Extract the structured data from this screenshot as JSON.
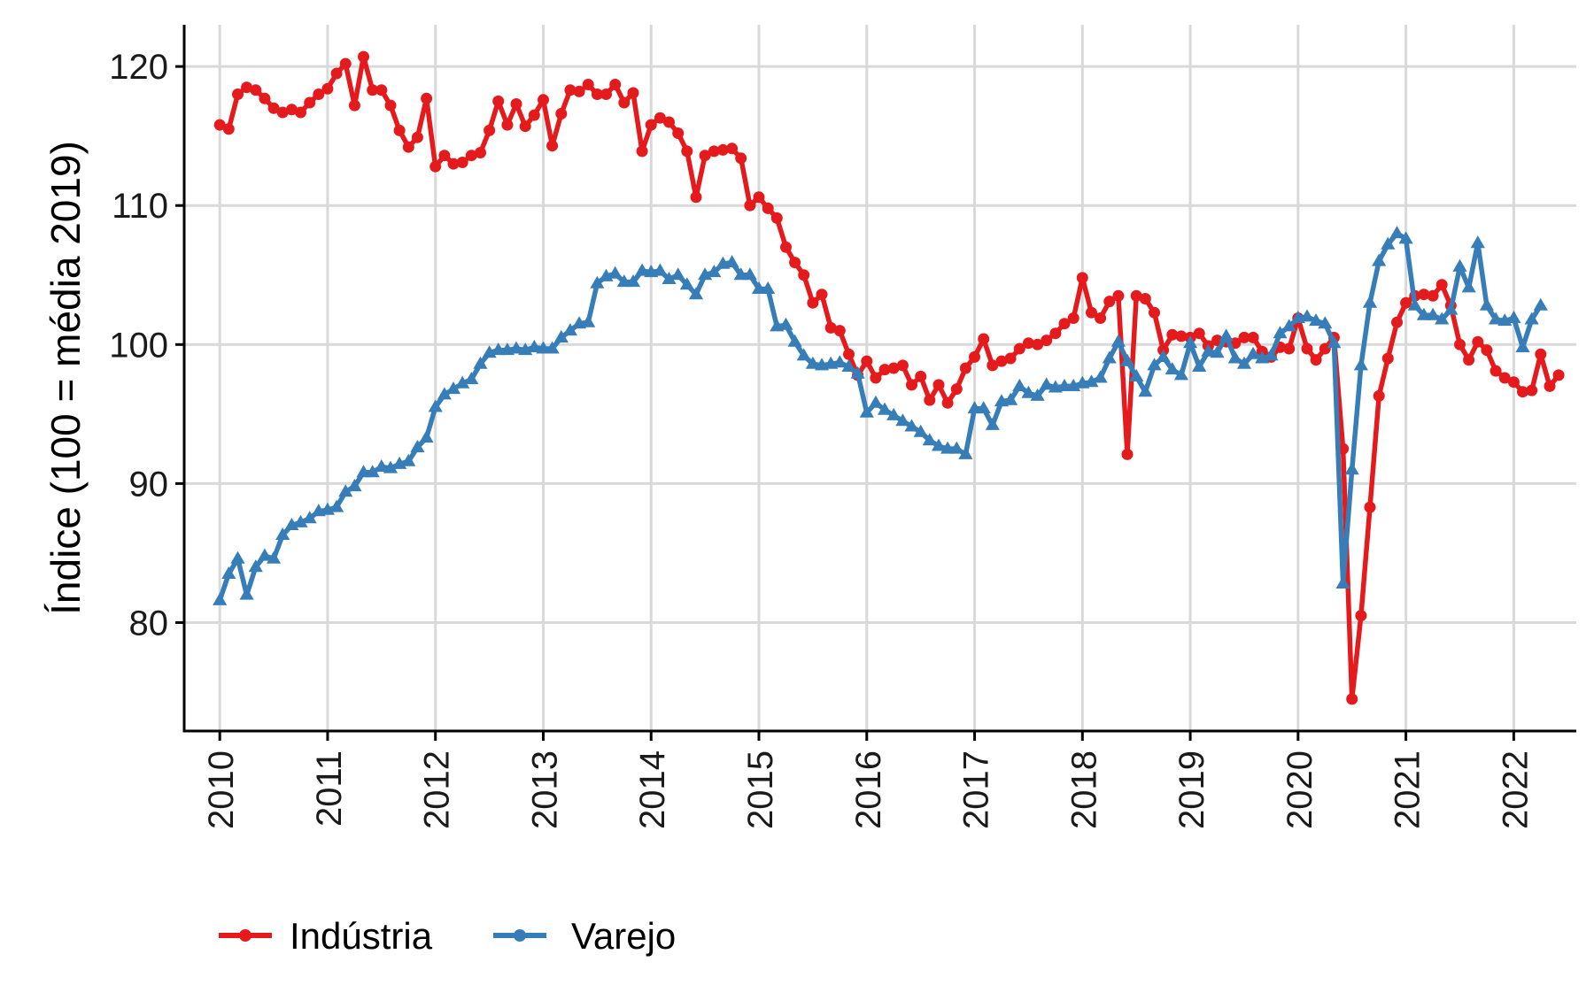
{
  "chart_data": {
    "type": "line",
    "title": "",
    "xlabel": "",
    "ylabel": "Índice (100 = média 2019)",
    "xlim": [
      2009.67,
      2022.58
    ],
    "ylim": [
      72.2,
      123.0
    ],
    "y_ticks": [
      80,
      90,
      100,
      110,
      120
    ],
    "x_ticks": [
      2010,
      2011,
      2012,
      2013,
      2014,
      2015,
      2016,
      2017,
      2018,
      2019,
      2020,
      2021,
      2022
    ],
    "x_tick_labels": [
      "2010",
      "2011",
      "2012",
      "2013",
      "2014",
      "2015",
      "2016",
      "2017",
      "2018",
      "2019",
      "2020",
      "2021",
      "2022"
    ],
    "grid": true,
    "legend_position": "bottom-left",
    "x_start": "2010-01",
    "series": [
      {
        "name": "Indústria",
        "color": "#E41A1C",
        "marker": "circle",
        "values": [
          115.8,
          115.5,
          118.0,
          118.5,
          118.3,
          117.7,
          117.0,
          116.7,
          116.9,
          116.7,
          117.4,
          118.0,
          118.4,
          119.5,
          120.2,
          117.2,
          120.7,
          118.3,
          118.3,
          117.2,
          115.4,
          114.2,
          114.9,
          117.7,
          112.8,
          113.6,
          113.0,
          113.1,
          113.6,
          113.8,
          115.4,
          117.5,
          115.8,
          117.3,
          115.7,
          116.5,
          117.6,
          114.3,
          116.6,
          118.3,
          118.2,
          118.7,
          118.0,
          118.0,
          118.7,
          117.4,
          118.1,
          113.9,
          115.8,
          116.3,
          116.0,
          115.2,
          113.9,
          110.6,
          113.6,
          113.9,
          114.0,
          114.1,
          113.4,
          110.0,
          110.6,
          109.8,
          109.1,
          107.0,
          105.9,
          105.0,
          103.0,
          103.6,
          101.2,
          101.0,
          99.3,
          97.8,
          98.8,
          97.6,
          98.2,
          98.3,
          98.5,
          97.1,
          97.7,
          96.0,
          97.1,
          95.8,
          96.8,
          98.3,
          99.1,
          100.4,
          98.5,
          98.8,
          99.0,
          99.7,
          100.1,
          100.0,
          100.3,
          100.8,
          101.5,
          101.9,
          104.8,
          102.3,
          101.9,
          103.1,
          103.5,
          92.1,
          103.5,
          103.3,
          102.3,
          99.6,
          100.7,
          100.6,
          100.5,
          100.8,
          99.9,
          100.3,
          100.2,
          100.1,
          100.5,
          100.5,
          99.5,
          99.1,
          99.8,
          99.7,
          101.9,
          99.7,
          98.9,
          99.7,
          100.5,
          92.5,
          74.5,
          80.5,
          88.3,
          96.3,
          99.0,
          101.6,
          103.0,
          103.5,
          103.6,
          103.5,
          104.3,
          102.8,
          100.0,
          98.9,
          100.2,
          99.6,
          98.1,
          97.6,
          97.3,
          96.6,
          96.7,
          99.3,
          97.0,
          97.8
        ]
      },
      {
        "name": "Varejo",
        "color": "#377EB8",
        "marker": "triangle",
        "values": [
          81.6,
          83.5,
          84.6,
          82.0,
          84.0,
          84.8,
          84.6,
          86.3,
          87.0,
          87.2,
          87.5,
          88.0,
          88.1,
          88.3,
          89.4,
          89.8,
          90.8,
          90.8,
          91.2,
          91.1,
          91.4,
          91.6,
          92.6,
          93.3,
          95.5,
          96.4,
          96.8,
          97.2,
          97.5,
          98.6,
          99.4,
          99.6,
          99.6,
          99.7,
          99.6,
          99.8,
          99.7,
          99.7,
          100.5,
          101.0,
          101.5,
          101.6,
          104.4,
          104.9,
          105.1,
          104.5,
          104.5,
          105.3,
          105.2,
          105.3,
          104.7,
          105.0,
          104.3,
          103.6,
          105.0,
          105.2,
          105.8,
          105.9,
          105.0,
          105.0,
          104.0,
          104.0,
          101.3,
          101.4,
          100.2,
          99.2,
          98.6,
          98.5,
          98.6,
          98.7,
          98.4,
          97.9,
          95.1,
          95.8,
          95.3,
          94.9,
          94.5,
          94.1,
          93.7,
          93.1,
          92.7,
          92.5,
          92.5,
          92.1,
          95.4,
          95.4,
          94.2,
          95.9,
          96.0,
          97.0,
          96.5,
          96.3,
          97.1,
          96.9,
          97.0,
          97.0,
          97.2,
          97.3,
          97.6,
          99.0,
          100.2,
          98.8,
          97.7,
          96.6,
          98.5,
          99.1,
          98.2,
          97.8,
          100.1,
          98.4,
          99.5,
          99.4,
          100.6,
          99.0,
          98.6,
          99.3,
          99.0,
          99.2,
          100.8,
          101.3,
          101.9,
          102.0,
          101.7,
          101.5,
          100.1,
          82.8,
          91.0,
          98.5,
          103.0,
          106.0,
          107.2,
          108.0,
          107.6,
          102.8,
          102.1,
          102.1,
          101.8,
          102.5,
          105.6,
          104.1,
          107.3,
          102.8,
          101.8,
          101.7,
          101.9,
          99.8,
          101.8,
          102.8
        ]
      }
    ]
  }
}
